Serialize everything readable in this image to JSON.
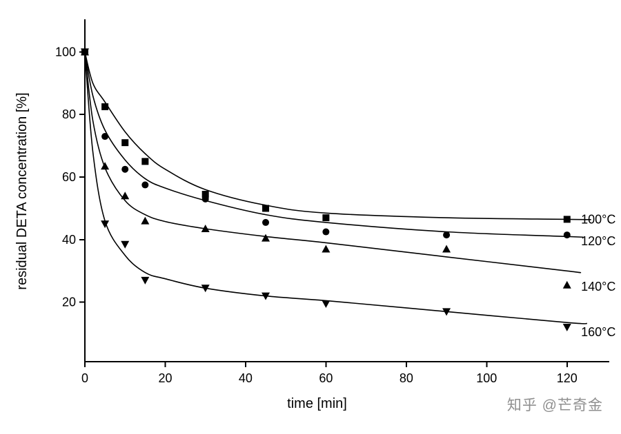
{
  "watermark": {
    "text": "知乎 @芒奇金"
  },
  "chart_data": {
    "type": "line-scatter",
    "title": "",
    "xlabel": "time [min]",
    "ylabel": "residual DETA concentration [%]",
    "xlim": [
      0,
      130
    ],
    "ylim": [
      1,
      110
    ],
    "xticks": [
      0,
      20,
      40,
      60,
      80,
      100,
      120
    ],
    "yticks": [
      20,
      40,
      60,
      80,
      100
    ],
    "grid": false,
    "legend_position": "right-inline",
    "axis_color": "#000000",
    "series": [
      {
        "name": "100°C",
        "marker": "square",
        "color": "#000000",
        "x": [
          0,
          5,
          10,
          15,
          30,
          45,
          60,
          120
        ],
        "y": [
          100,
          82.5,
          71,
          65,
          54.5,
          50,
          47,
          46.5
        ],
        "curve_x": [
          0,
          2,
          5,
          10,
          15,
          20,
          30,
          45,
          60,
          90,
          120,
          126
        ],
        "curve_y": [
          100,
          90,
          84,
          74.5,
          67.5,
          62.5,
          56,
          51,
          48.5,
          47,
          46.5,
          46.4
        ],
        "label": "100°C",
        "label_x": 123.5,
        "label_y": 46.5
      },
      {
        "name": "120°C",
        "marker": "circle",
        "color": "#000000",
        "x": [
          0,
          5,
          10,
          15,
          30,
          45,
          60,
          90,
          120
        ],
        "y": [
          100,
          73,
          62.5,
          57.5,
          53,
          45.5,
          42.5,
          41.5,
          41.5
        ],
        "curve_x": [
          0,
          2,
          5,
          10,
          15,
          20,
          30,
          45,
          60,
          90,
          120,
          124
        ],
        "curve_y": [
          100,
          86,
          75,
          65.5,
          59.5,
          56.5,
          52.5,
          48,
          45.5,
          42.5,
          41,
          40.8
        ],
        "label": "120°C",
        "label_x": 123.5,
        "label_y": 39.5
      },
      {
        "name": "140°C",
        "marker": "triangle-up",
        "color": "#000000",
        "x": [
          0,
          5,
          10,
          15,
          30,
          45,
          60,
          90,
          120
        ],
        "y": [
          100,
          63.5,
          54,
          46,
          43.5,
          40.5,
          37,
          37,
          25.5
        ],
        "curve_x": [
          0,
          2,
          5,
          10,
          15,
          20,
          30,
          45,
          60,
          90,
          120,
          123
        ],
        "curve_y": [
          100,
          78,
          63,
          52.5,
          48,
          45.8,
          43.5,
          41,
          39,
          34.5,
          30,
          29.5
        ],
        "label": "140°C",
        "label_x": 123.5,
        "label_y": 25
      },
      {
        "name": "160°C",
        "marker": "triangle-down",
        "color": "#000000",
        "x": [
          0,
          5,
          10,
          15,
          30,
          45,
          60,
          90,
          120
        ],
        "y": [
          100,
          45,
          38.5,
          27,
          24.5,
          22,
          19.5,
          17,
          12
        ],
        "curve_x": [
          0,
          2,
          5,
          10,
          15,
          20,
          30,
          45,
          60,
          90,
          120,
          125
        ],
        "curve_y": [
          100,
          68,
          46,
          35,
          29.5,
          27.5,
          24.5,
          22,
          20.5,
          17,
          13.5,
          13.2
        ],
        "label": "160°C",
        "label_x": 123.5,
        "label_y": 10.5
      }
    ]
  }
}
